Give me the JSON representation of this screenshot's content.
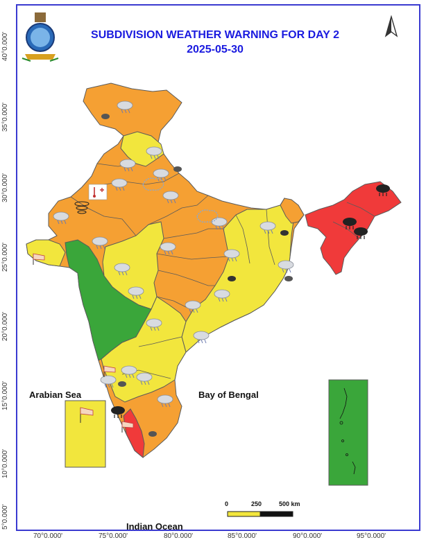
{
  "map": {
    "title": "SUBDIVISION WEATHER WARNING FOR DAY 2",
    "date": "2025-05-30",
    "latitude_labels": [
      "40°0.000'",
      "35°0.000'",
      "30°0.000'",
      "25°0.000'",
      "20°0.000'",
      "15°0.000'",
      "10°0.000'",
      "5°0.000'"
    ],
    "longitude_labels": [
      "70°0.000'",
      "75°0.000'",
      "80°0.000'",
      "85°0.000'",
      "90°0.000'",
      "95°0.000'"
    ],
    "sea_labels": {
      "arabian_sea": "Arabian Sea",
      "bay_of_bengal": "Bay of Bengal",
      "indian_ocean": "Indian Ocean"
    },
    "scale_bar": {
      "ticks": [
        "0",
        "250",
        "500 km"
      ]
    },
    "colors": {
      "red": "#f03a3a",
      "orange": "#f5a033",
      "yellow": "#f2e63d",
      "green": "#3aa63a",
      "boundary": "#5a5a5a",
      "title": "#1a1adf"
    },
    "icons": [
      "north-arrow-icon",
      "emblem-icon",
      "thunderstorm-icon",
      "heavy-rain-icon",
      "gusty-wind-icon",
      "heatwave-icon",
      "dust-storm-icon"
    ]
  }
}
